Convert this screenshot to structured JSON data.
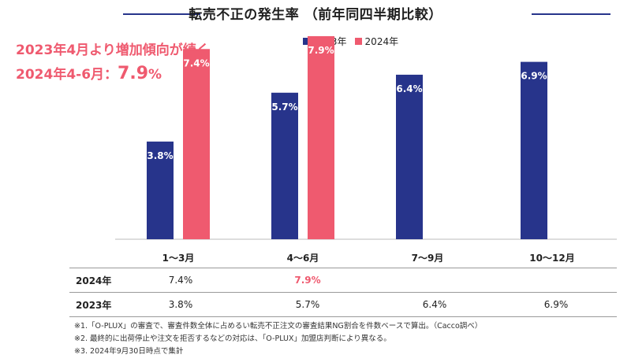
{
  "title": "転売不正の発生率 （前年同四半期比較）",
  "callout": {
    "line1": "2023年4月より増加傾向が続く",
    "line2_prefix": "2024年4-6月：",
    "line2_value": "7.9",
    "line2_unit": "%"
  },
  "colors": {
    "2023": "#27348b",
    "2024": "#ef5a6f",
    "accent_line": "#27348b"
  },
  "chart_data": {
    "type": "bar",
    "categories": [
      "1〜3月",
      "4〜6月",
      "7〜9月",
      "10〜12月"
    ],
    "series": [
      {
        "name": "2023年",
        "values": [
          3.8,
          5.7,
          6.4,
          6.9
        ],
        "labels": [
          "3.8%",
          "5.7%",
          "6.4%",
          "6.9%"
        ]
      },
      {
        "name": "2024年",
        "values": [
          7.4,
          7.9,
          null,
          null
        ],
        "labels": [
          "7.4%",
          "7.9%",
          "",
          ""
        ]
      }
    ],
    "ylim": [
      0,
      9
    ],
    "legend": "top-center"
  },
  "table": {
    "rows": [
      {
        "label": "2024年",
        "cells": [
          "7.4%",
          "7.9%",
          "",
          ""
        ]
      },
      {
        "label": "2023年",
        "cells": [
          "3.8%",
          "5.7%",
          "6.4%",
          "6.9%"
        ]
      }
    ]
  },
  "notes": [
    "※1.「O-PLUX」の審査で、審査件数全体に占めるい転売不正注文の審査結果NG割合を件数ベースで算出。（Cacco調べ）",
    "※2. 最終的に出荷停止や注文を拒否するなどの対応は、「O-PLUX」加盟店判断により異なる。",
    "※3. 2024年9月30日時点で集計"
  ]
}
